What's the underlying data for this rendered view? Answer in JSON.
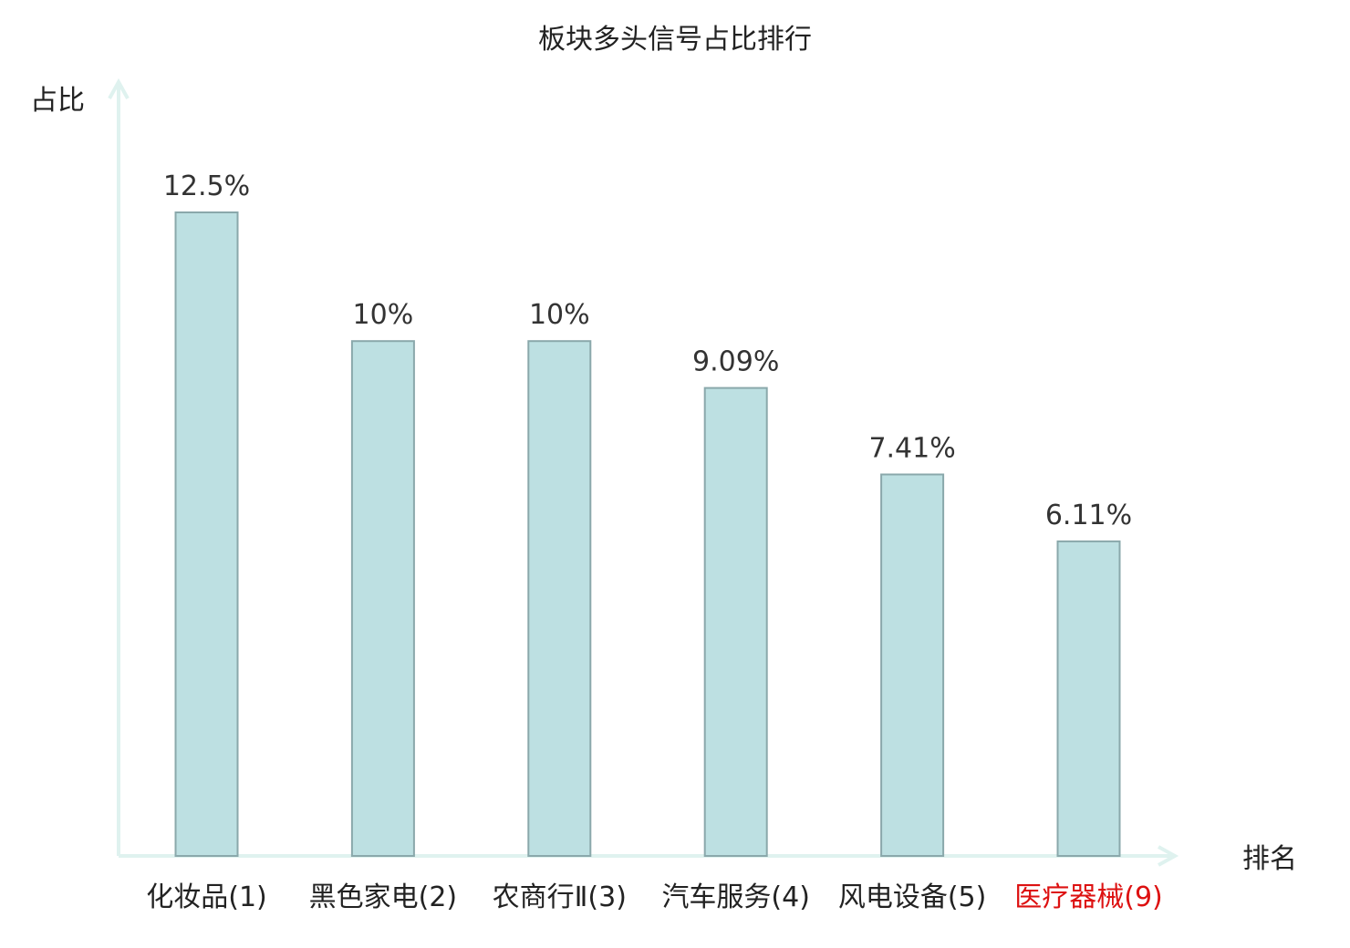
{
  "chart_data": {
    "type": "bar",
    "title": "板块多头信号占比排行",
    "ylabel": "占比",
    "xlabel": "排名",
    "categories": [
      "化妆品(1)",
      "黑色家电(2)",
      "农商行Ⅱ(3)",
      "汽车服务(4)",
      "风电设备(5)",
      "医疗器械(9)"
    ],
    "values": [
      12.5,
      10,
      10,
      9.09,
      7.41,
      6.11
    ],
    "value_labels": [
      "12.5%",
      "10%",
      "10%",
      "9.09%",
      "7.41%",
      "6.11%"
    ],
    "category_colors": [
      "#222222",
      "#222222",
      "#222222",
      "#222222",
      "#222222",
      "#dd1111"
    ],
    "ylim": [
      0,
      15
    ],
    "grid": false,
    "colors": {
      "bar_fill": "#bde0e2",
      "bar_stroke": "#8aa8ab",
      "axis": "#dff2ef"
    }
  }
}
